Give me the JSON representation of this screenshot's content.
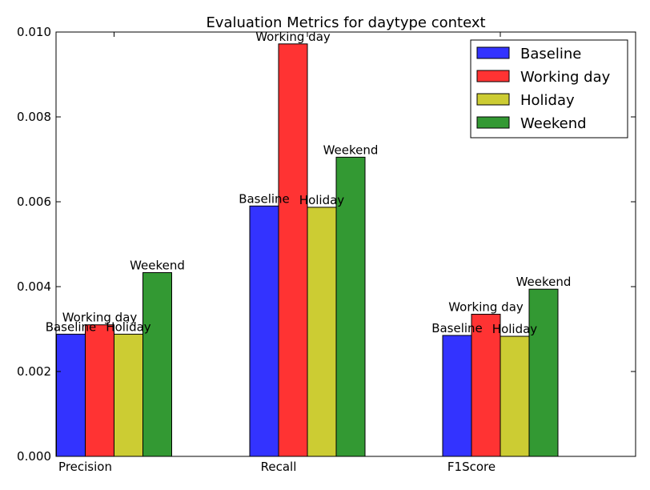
{
  "chart_data": {
    "type": "bar",
    "title": "Evaluation Metrics for daytype context",
    "xlabel": "",
    "ylabel": "",
    "categories": [
      "Precision",
      "Recall",
      "F1Score"
    ],
    "ylim": [
      0,
      0.01
    ],
    "yticks": [
      0.0,
      0.002,
      0.004,
      0.006,
      0.008,
      0.01
    ],
    "ytick_labels": [
      "0.000",
      "0.002",
      "0.004",
      "0.006",
      "0.008",
      "0.010"
    ],
    "grid": false,
    "legend_position": "top-right",
    "series": [
      {
        "name": "Baseline",
        "color": "#3333ff",
        "values": [
          0.00288,
          0.0059,
          0.00285
        ]
      },
      {
        "name": "Working day",
        "color": "#ff3333",
        "values": [
          0.0031,
          0.00972,
          0.00335
        ]
      },
      {
        "name": "Holiday",
        "color": "#cccc33",
        "values": [
          0.00288,
          0.00587,
          0.00283
        ]
      },
      {
        "name": "Weekend",
        "color": "#339933",
        "values": [
          0.00433,
          0.00705,
          0.00394
        ]
      }
    ]
  }
}
